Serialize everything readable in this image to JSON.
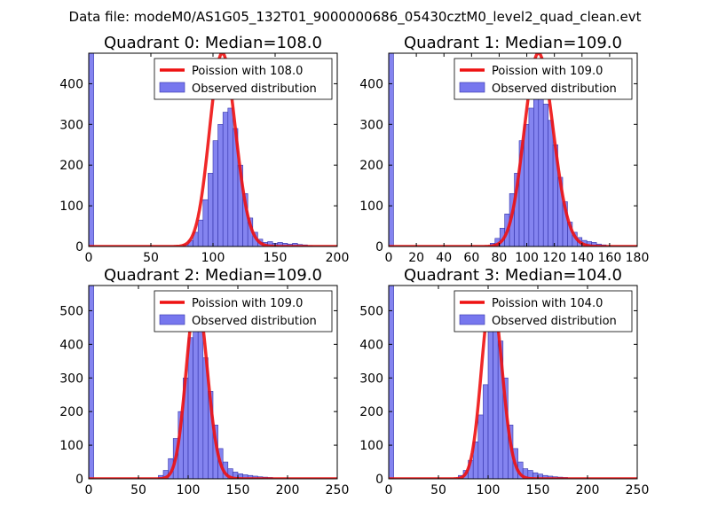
{
  "figure": {
    "suptitle": "Data file: modeM0/AS1G05_132T01_9000000686_05430cztM0_level2_quad_clean.evt"
  },
  "colors": {
    "histogram_fill": "#7777ee",
    "histogram_edge": "#3333aa",
    "poisson_line": "#ee1111"
  },
  "chart_data": [
    {
      "type": "bar",
      "title": "Quadrant 0: Median=108.0",
      "legend": {
        "placement": "top-right",
        "entries": [
          "Poission with 108.0",
          "Observed distribution"
        ]
      },
      "median": 108.0,
      "xlim": [
        0,
        200
      ],
      "ylim": [
        0,
        475
      ],
      "xticks": [
        0,
        50,
        100,
        150,
        200
      ],
      "yticks": [
        0,
        100,
        200,
        300,
        400
      ],
      "bin_width": 4,
      "poisson_peak": 475,
      "bins": [
        [
          0,
          475
        ],
        [
          76,
          5
        ],
        [
          80,
          15
        ],
        [
          84,
          35
        ],
        [
          88,
          65
        ],
        [
          92,
          115
        ],
        [
          96,
          180
        ],
        [
          100,
          260
        ],
        [
          104,
          300
        ],
        [
          108,
          330
        ],
        [
          112,
          340
        ],
        [
          116,
          290
        ],
        [
          120,
          200
        ],
        [
          124,
          130
        ],
        [
          128,
          70
        ],
        [
          132,
          35
        ],
        [
          136,
          18
        ],
        [
          140,
          10
        ],
        [
          144,
          12
        ],
        [
          148,
          8
        ],
        [
          152,
          10
        ],
        [
          156,
          8
        ],
        [
          160,
          6
        ],
        [
          164,
          8
        ],
        [
          168,
          5
        ],
        [
          172,
          4
        ],
        [
          176,
          2
        ]
      ]
    },
    {
      "type": "bar",
      "title": "Quadrant 1: Median=109.0",
      "legend": {
        "placement": "top-right",
        "entries": [
          "Poission with 109.0",
          "Observed distribution"
        ]
      },
      "median": 109.0,
      "xlim": [
        0,
        180
      ],
      "ylim": [
        0,
        475
      ],
      "xticks": [
        0,
        20,
        40,
        60,
        80,
        100,
        120,
        140,
        160,
        180
      ],
      "yticks": [
        0,
        100,
        200,
        300,
        400
      ],
      "bin_width": 3.5,
      "poisson_peak": 475,
      "bins": [
        [
          0,
          475
        ],
        [
          73.5,
          8
        ],
        [
          77,
          20
        ],
        [
          80.5,
          45
        ],
        [
          84,
          80
        ],
        [
          87.5,
          130
        ],
        [
          91,
          180
        ],
        [
          94.5,
          260
        ],
        [
          98,
          300
        ],
        [
          101.5,
          340
        ],
        [
          105,
          390
        ],
        [
          108.5,
          400
        ],
        [
          112,
          350
        ],
        [
          115.5,
          310
        ],
        [
          119,
          250
        ],
        [
          122.5,
          170
        ],
        [
          126,
          110
        ],
        [
          129.5,
          60
        ],
        [
          133,
          35
        ],
        [
          136.5,
          22
        ],
        [
          140,
          15
        ],
        [
          143.5,
          12
        ],
        [
          147,
          10
        ],
        [
          150.5,
          6
        ],
        [
          154,
          4
        ]
      ]
    },
    {
      "type": "bar",
      "title": "Quadrant 2: Median=109.0",
      "legend": {
        "placement": "top-right",
        "entries": [
          "Poission with 109.0",
          "Observed distribution"
        ]
      },
      "median": 109.0,
      "xlim": [
        0,
        250
      ],
      "ylim": [
        0,
        575
      ],
      "xticks": [
        0,
        50,
        100,
        150,
        200,
        250
      ],
      "yticks": [
        0,
        100,
        200,
        300,
        400,
        500
      ],
      "bin_width": 5,
      "poisson_peak": 545,
      "bins": [
        [
          0,
          575
        ],
        [
          70,
          10
        ],
        [
          75,
          25
        ],
        [
          80,
          60
        ],
        [
          85,
          120
        ],
        [
          90,
          200
        ],
        [
          95,
          300
        ],
        [
          100,
          420
        ],
        [
          105,
          490
        ],
        [
          110,
          470
        ],
        [
          115,
          360
        ],
        [
          120,
          260
        ],
        [
          125,
          160
        ],
        [
          130,
          90
        ],
        [
          135,
          50
        ],
        [
          140,
          30
        ],
        [
          145,
          20
        ],
        [
          150,
          15
        ],
        [
          155,
          12
        ],
        [
          160,
          10
        ],
        [
          165,
          8
        ],
        [
          170,
          6
        ],
        [
          175,
          5
        ],
        [
          180,
          4
        ]
      ]
    },
    {
      "type": "bar",
      "title": "Quadrant 3: Median=104.0",
      "legend": {
        "placement": "top-right",
        "entries": [
          "Poission with 104.0",
          "Observed distribution"
        ]
      },
      "median": 104.0,
      "xlim": [
        0,
        250
      ],
      "ylim": [
        0,
        575
      ],
      "xticks": [
        0,
        50,
        100,
        150,
        200,
        250
      ],
      "yticks": [
        0,
        100,
        200,
        300,
        400,
        500
      ],
      "bin_width": 5,
      "poisson_peak": 550,
      "bins": [
        [
          0,
          575
        ],
        [
          70,
          10
        ],
        [
          75,
          25
        ],
        [
          80,
          55
        ],
        [
          85,
          110
        ],
        [
          90,
          190
        ],
        [
          95,
          280
        ],
        [
          100,
          440
        ],
        [
          105,
          440
        ],
        [
          110,
          410
        ],
        [
          115,
          300
        ],
        [
          120,
          160
        ],
        [
          125,
          90
        ],
        [
          130,
          50
        ],
        [
          135,
          30
        ],
        [
          140,
          25
        ],
        [
          145,
          18
        ],
        [
          150,
          14
        ],
        [
          155,
          10
        ],
        [
          160,
          8
        ],
        [
          165,
          6
        ],
        [
          170,
          5
        ],
        [
          175,
          4
        ]
      ]
    }
  ]
}
